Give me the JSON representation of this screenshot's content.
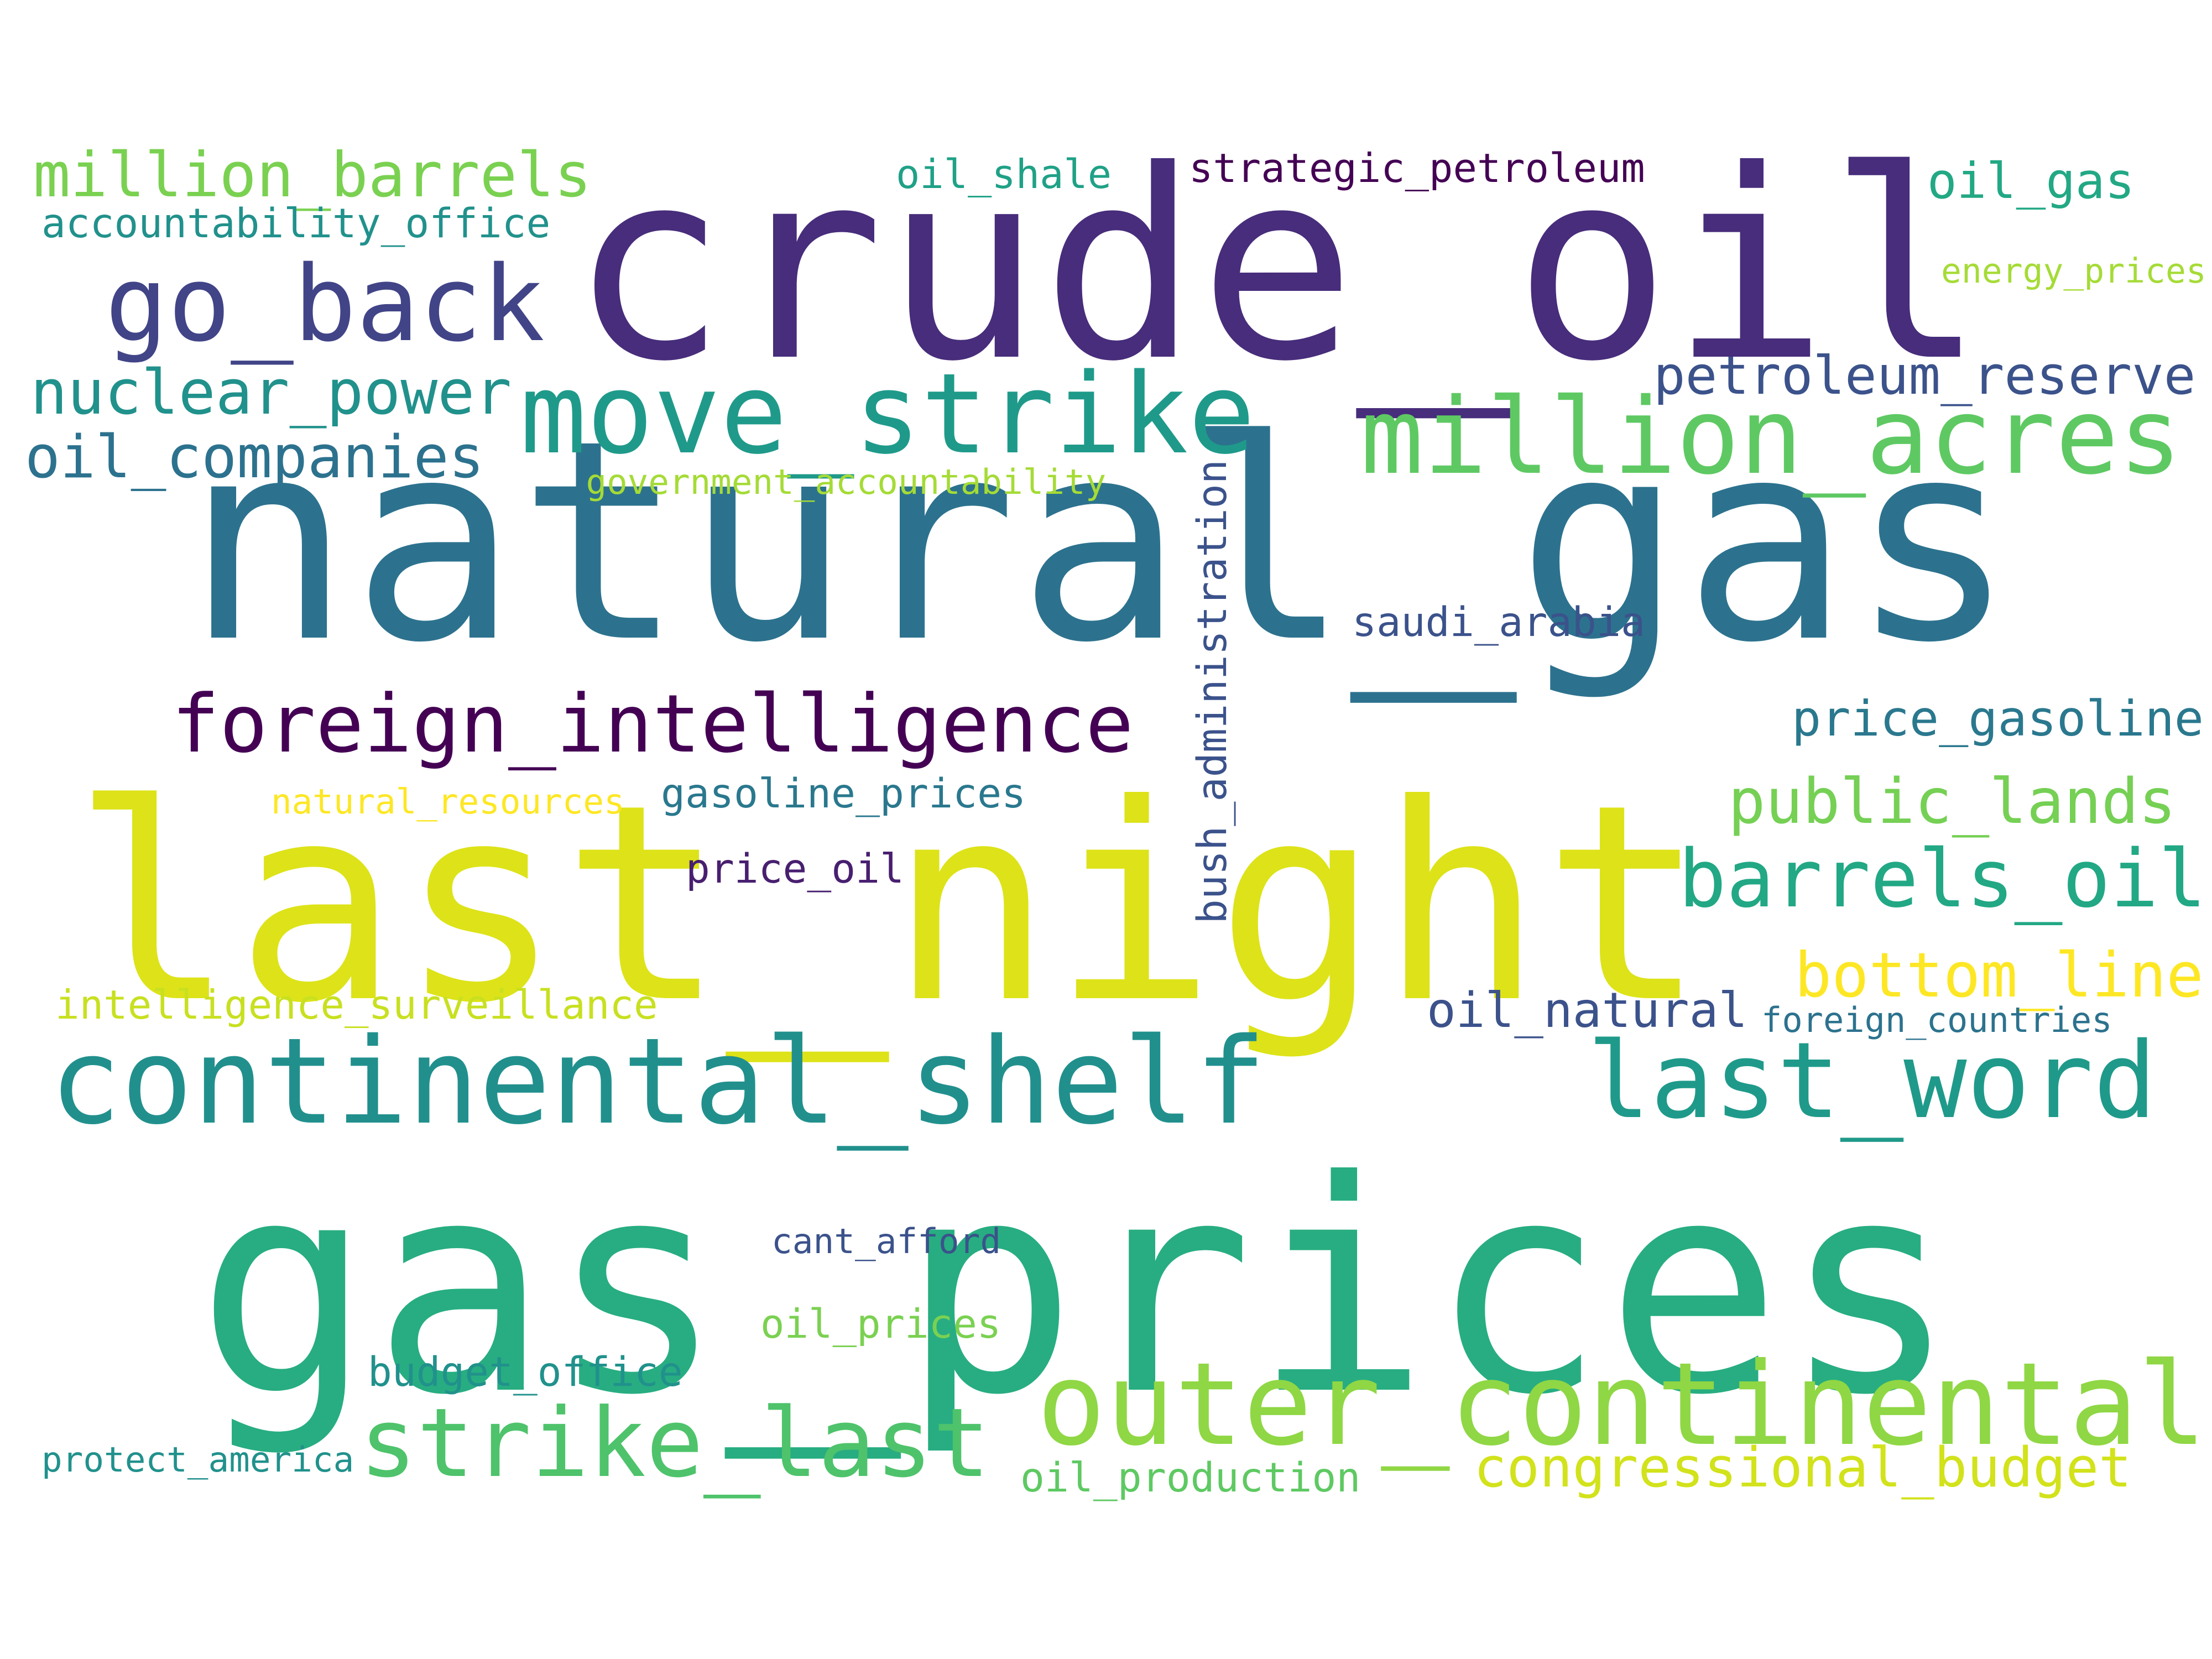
{
  "words": [
    {
      "text": "natural_gas",
      "color": "#2c728e"
    },
    {
      "text": "gas_prices",
      "color": "#27ad81"
    },
    {
      "text": "last_night",
      "color": "#dde318"
    },
    {
      "text": "crude_oil",
      "color": "#472d7b"
    },
    {
      "text": "continental_shelf",
      "color": "#21908d"
    },
    {
      "text": "outer_continental",
      "color": "#8fd744"
    },
    {
      "text": "move_strike",
      "color": "#1f9a8a"
    },
    {
      "text": "million_acres",
      "color": "#5ec962"
    },
    {
      "text": "last_word",
      "color": "#1f9a8a"
    },
    {
      "text": "strike_last",
      "color": "#4ec36b"
    },
    {
      "text": "foreign_intelligence",
      "color": "#440154"
    },
    {
      "text": "go_back",
      "color": "#414487"
    },
    {
      "text": "barrels_oil",
      "color": "#22a884"
    },
    {
      "text": "million_barrels",
      "color": "#7ad151"
    },
    {
      "text": "nuclear_power",
      "color": "#21918c"
    },
    {
      "text": "public_lands",
      "color": "#75d054"
    },
    {
      "text": "bottom_line",
      "color": "#fde725"
    },
    {
      "text": "oil_companies",
      "color": "#2c728e"
    },
    {
      "text": "congressional_budget",
      "color": "#d2e21b"
    },
    {
      "text": "petroleum_reserve",
      "color": "#3b528b"
    },
    {
      "text": "price_gasoline",
      "color": "#2a788e"
    },
    {
      "text": "oil_gas",
      "color": "#22a884"
    },
    {
      "text": "strategic_petroleum",
      "color": "#440154"
    },
    {
      "text": "gasoline_prices",
      "color": "#2a788e"
    },
    {
      "text": "oil_natural",
      "color": "#3b528b"
    },
    {
      "text": "accountability_office",
      "color": "#21918c"
    },
    {
      "text": "bush_administration",
      "color": "#3b528b"
    },
    {
      "text": "oil_shale",
      "color": "#1fa187"
    },
    {
      "text": "saudi_arabia",
      "color": "#3b528b"
    },
    {
      "text": "oil_prices",
      "color": "#7ad151"
    },
    {
      "text": "budget_office",
      "color": "#21918c"
    },
    {
      "text": "oil_production",
      "color": "#5ec962"
    },
    {
      "text": "cant_afford",
      "color": "#3b528b"
    },
    {
      "text": "price_oil",
      "color": "#481f70"
    },
    {
      "text": "natural_resources",
      "color": "#fde725"
    },
    {
      "text": "intelligence_surveillance",
      "color": "#c8e020"
    },
    {
      "text": "government_accountability",
      "color": "#a5db36"
    },
    {
      "text": "foreign_countries",
      "color": "#2c728e"
    },
    {
      "text": "energy_prices",
      "color": "#a5db36"
    },
    {
      "text": "protect_america",
      "color": "#21918c"
    }
  ]
}
